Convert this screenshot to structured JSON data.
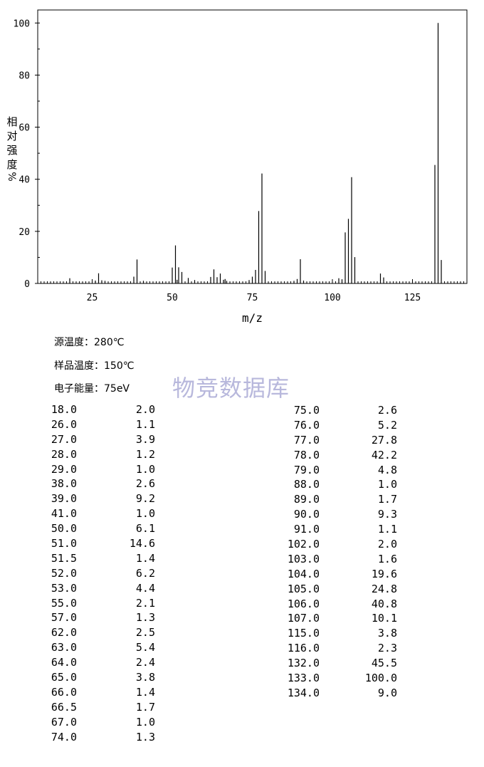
{
  "chart_data": {
    "type": "bar",
    "xlabel": "m/z",
    "ylabel": "相对强度",
    "ylabel_suffix": "%",
    "xlim": [
      8,
      142
    ],
    "ylim": [
      0,
      105
    ],
    "xticks": [
      25,
      50,
      75,
      100,
      125
    ],
    "yticks": [
      0,
      20,
      40,
      60,
      80,
      100
    ],
    "grid": false,
    "peaks": [
      {
        "x": 18.0,
        "y": 2.0
      },
      {
        "x": 26.0,
        "y": 1.1
      },
      {
        "x": 27.0,
        "y": 3.9
      },
      {
        "x": 28.0,
        "y": 1.2
      },
      {
        "x": 29.0,
        "y": 1.0
      },
      {
        "x": 38.0,
        "y": 2.6
      },
      {
        "x": 39.0,
        "y": 9.2
      },
      {
        "x": 41.0,
        "y": 1.0
      },
      {
        "x": 50.0,
        "y": 6.1
      },
      {
        "x": 51.0,
        "y": 14.6
      },
      {
        "x": 51.5,
        "y": 1.4
      },
      {
        "x": 52.0,
        "y": 6.2
      },
      {
        "x": 53.0,
        "y": 4.4
      },
      {
        "x": 55.0,
        "y": 2.1
      },
      {
        "x": 57.0,
        "y": 1.3
      },
      {
        "x": 62.0,
        "y": 2.5
      },
      {
        "x": 63.0,
        "y": 5.4
      },
      {
        "x": 64.0,
        "y": 2.4
      },
      {
        "x": 65.0,
        "y": 3.8
      },
      {
        "x": 66.0,
        "y": 1.4
      },
      {
        "x": 66.5,
        "y": 1.7
      },
      {
        "x": 67.0,
        "y": 1.0
      },
      {
        "x": 74.0,
        "y": 1.3
      },
      {
        "x": 75.0,
        "y": 2.6
      },
      {
        "x": 76.0,
        "y": 5.2
      },
      {
        "x": 77.0,
        "y": 27.8
      },
      {
        "x": 78.0,
        "y": 42.2
      },
      {
        "x": 79.0,
        "y": 4.8
      },
      {
        "x": 88.0,
        "y": 1.0
      },
      {
        "x": 89.0,
        "y": 1.7
      },
      {
        "x": 90.0,
        "y": 9.3
      },
      {
        "x": 91.0,
        "y": 1.1
      },
      {
        "x": 102.0,
        "y": 2.0
      },
      {
        "x": 103.0,
        "y": 1.6
      },
      {
        "x": 104.0,
        "y": 19.6
      },
      {
        "x": 105.0,
        "y": 24.8
      },
      {
        "x": 106.0,
        "y": 40.8
      },
      {
        "x": 107.0,
        "y": 10.1
      },
      {
        "x": 115.0,
        "y": 3.8
      },
      {
        "x": 116.0,
        "y": 2.3
      },
      {
        "x": 132.0,
        "y": 45.5
      },
      {
        "x": 133.0,
        "y": 100.0
      },
      {
        "x": 134.0,
        "y": 9.0
      }
    ]
  },
  "conditions": {
    "source_temp": "源温度：280℃",
    "sample_temp": "样品温度：150℃",
    "electron_energy": "电子能量：75eV"
  },
  "watermark": "物竞数据库",
  "table_left": [
    [
      "18.0",
      "2.0"
    ],
    [
      "26.0",
      "1.1"
    ],
    [
      "27.0",
      "3.9"
    ],
    [
      "28.0",
      "1.2"
    ],
    [
      "29.0",
      "1.0"
    ],
    [
      "38.0",
      "2.6"
    ],
    [
      "39.0",
      "9.2"
    ],
    [
      "41.0",
      "1.0"
    ],
    [
      "50.0",
      "6.1"
    ],
    [
      "51.0",
      "14.6"
    ],
    [
      "51.5",
      "1.4"
    ],
    [
      "52.0",
      "6.2"
    ],
    [
      "53.0",
      "4.4"
    ],
    [
      "55.0",
      "2.1"
    ],
    [
      "57.0",
      "1.3"
    ],
    [
      "62.0",
      "2.5"
    ],
    [
      "63.0",
      "5.4"
    ],
    [
      "64.0",
      "2.4"
    ],
    [
      "65.0",
      "3.8"
    ],
    [
      "66.0",
      "1.4"
    ],
    [
      "66.5",
      "1.7"
    ],
    [
      "67.0",
      "1.0"
    ],
    [
      "74.0",
      "1.3"
    ]
  ],
  "table_right": [
    [
      "75.0",
      "2.6"
    ],
    [
      "76.0",
      "5.2"
    ],
    [
      "77.0",
      "27.8"
    ],
    [
      "78.0",
      "42.2"
    ],
    [
      "79.0",
      "4.8"
    ],
    [
      "88.0",
      "1.0"
    ],
    [
      "89.0",
      "1.7"
    ],
    [
      "90.0",
      "9.3"
    ],
    [
      "91.0",
      "1.1"
    ],
    [
      "102.0",
      "2.0"
    ],
    [
      "103.0",
      "1.6"
    ],
    [
      "104.0",
      "19.6"
    ],
    [
      "105.0",
      "24.8"
    ],
    [
      "106.0",
      "40.8"
    ],
    [
      "107.0",
      "10.1"
    ],
    [
      "115.0",
      "3.8"
    ],
    [
      "116.0",
      "2.3"
    ],
    [
      "132.0",
      "45.5"
    ],
    [
      "133.0",
      "100.0"
    ],
    [
      "134.0",
      "9.0"
    ]
  ]
}
